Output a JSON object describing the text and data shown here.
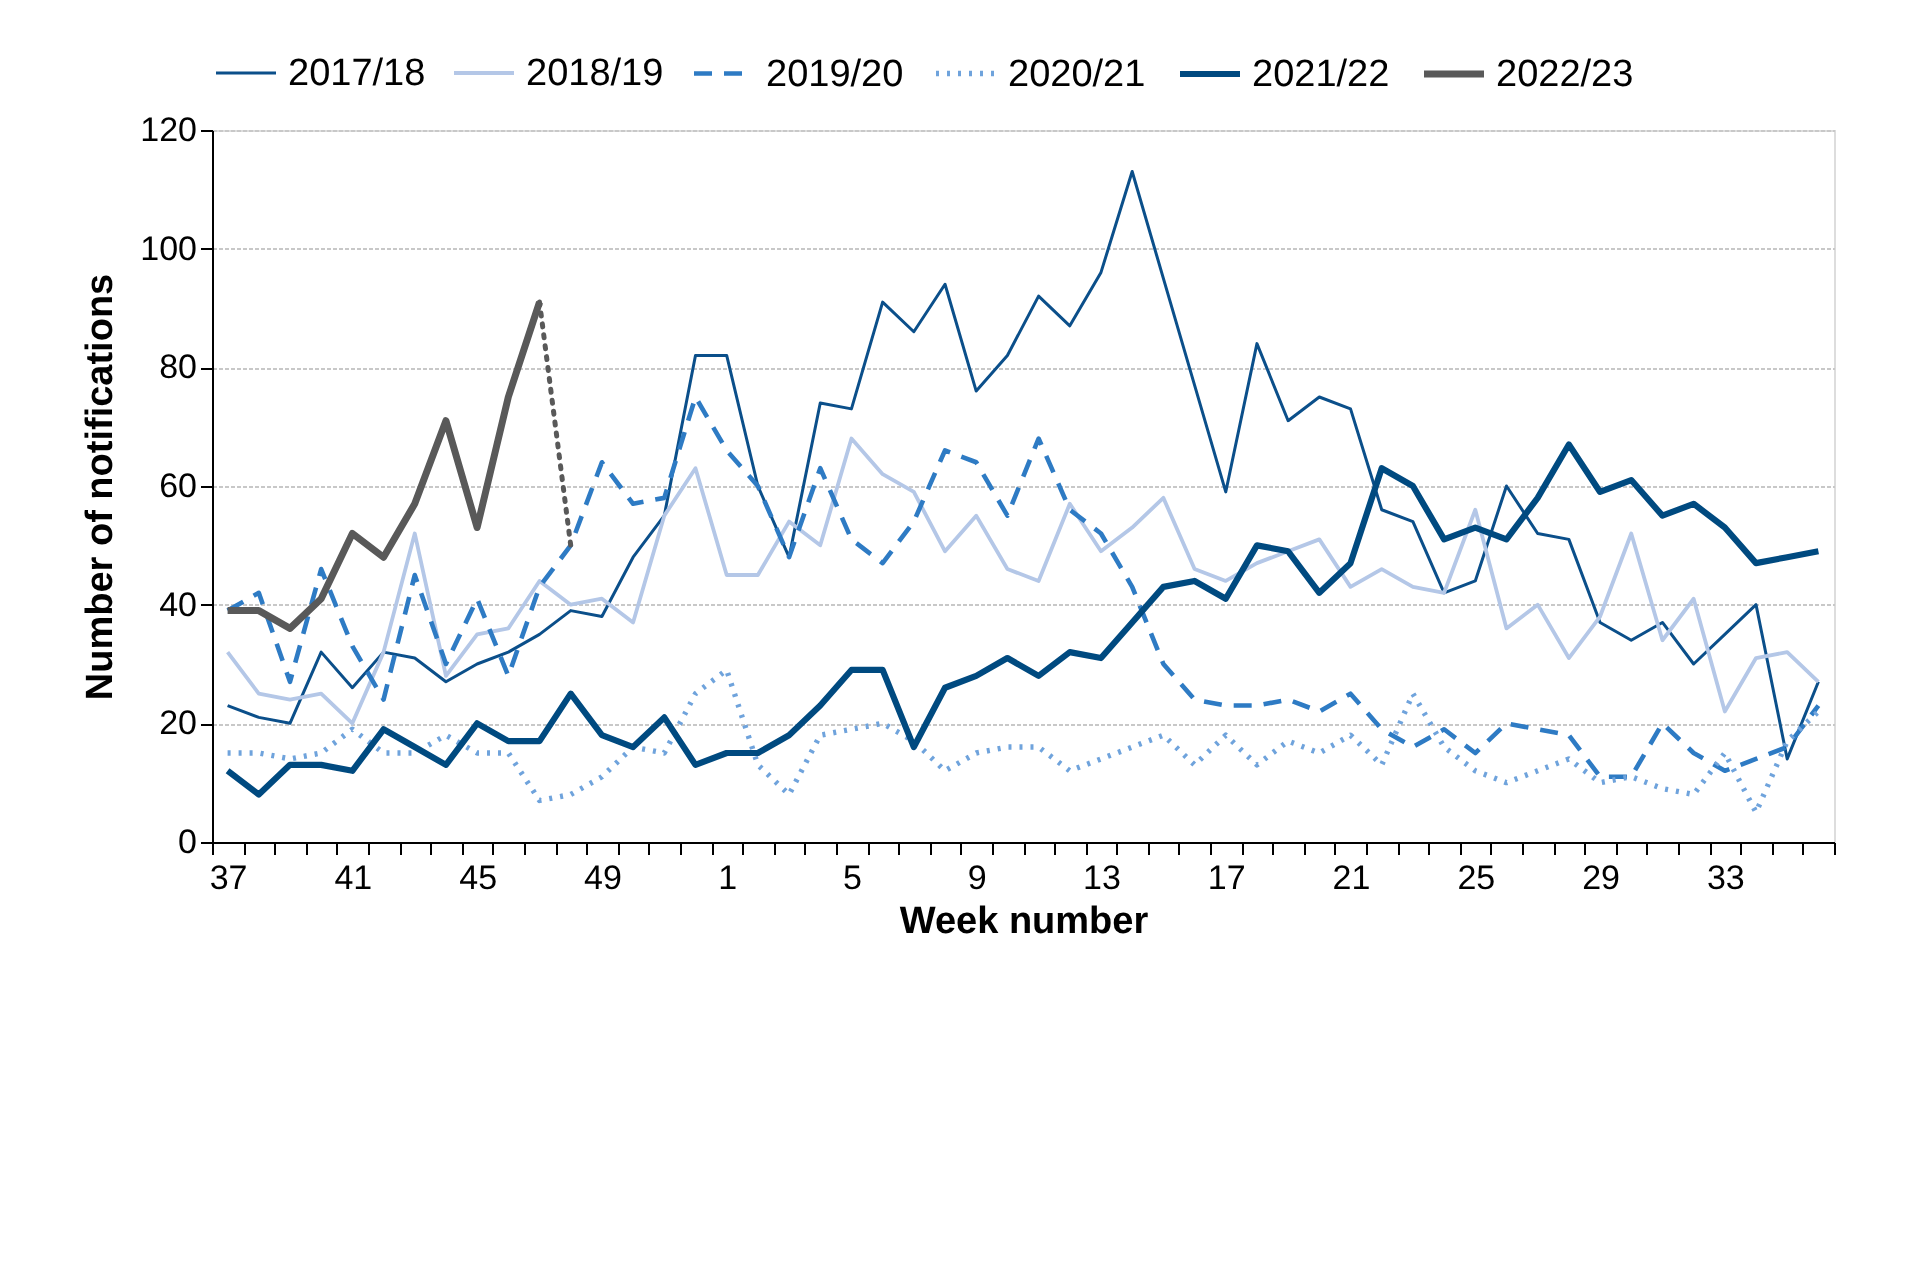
{
  "chart_data": {
    "type": "line",
    "xlabel": "Week number",
    "ylabel": "Number of notifications",
    "categories": [
      "37",
      null,
      null,
      null,
      "41",
      null,
      null,
      null,
      "45",
      null,
      null,
      null,
      "49",
      null,
      null,
      null,
      "1",
      null,
      null,
      null,
      "5",
      null,
      null,
      null,
      "9",
      null,
      null,
      null,
      "13",
      null,
      null,
      null,
      "17",
      null,
      null,
      null,
      "21",
      null,
      null,
      null,
      "25",
      null,
      null,
      null,
      "29",
      null,
      null,
      null,
      "33",
      null,
      null,
      null
    ],
    "ylim": [
      0,
      120
    ],
    "yticks": [
      0,
      20,
      40,
      60,
      80,
      100,
      120
    ],
    "grid": "y",
    "legend": "top",
    "series": [
      {
        "name": "2017/18",
        "color": "#0b4f8a",
        "line_style": "solid",
        "values": [
          23,
          21,
          20,
          32,
          26,
          32,
          31,
          27,
          30,
          32,
          35,
          39,
          38,
          48,
          55,
          82,
          82,
          60,
          48,
          74,
          73,
          91,
          86,
          94,
          76,
          82,
          92,
          87,
          96,
          113,
          95,
          77,
          59,
          84,
          71,
          75,
          73,
          56,
          54,
          42,
          44,
          60,
          52,
          51,
          37,
          34,
          37,
          30,
          35,
          40,
          14,
          27
        ]
      },
      {
        "name": "2018/19",
        "color": "#b4c7e7",
        "line_style": "solid",
        "values": [
          32,
          25,
          24,
          25,
          20,
          32,
          52,
          28,
          35,
          36,
          44,
          40,
          41,
          37,
          55,
          63,
          45,
          45,
          54,
          50,
          68,
          62,
          59,
          49,
          55,
          46,
          44,
          57,
          49,
          53,
          58,
          46,
          44,
          47,
          49,
          51,
          43,
          46,
          43,
          42,
          56,
          36,
          40,
          31,
          38,
          52,
          34,
          41,
          22,
          31,
          32,
          27
        ]
      },
      {
        "name": "2019/20",
        "color": "#2e7bc4",
        "line_style": "dashed",
        "values": [
          39,
          42,
          27,
          46,
          33,
          24,
          45,
          30,
          41,
          28,
          43,
          50,
          64,
          57,
          58,
          75,
          66,
          60,
          48,
          63,
          51,
          47,
          54,
          66,
          64,
          55,
          68,
          56,
          52,
          43,
          30,
          24,
          23,
          23,
          24,
          22,
          25,
          19,
          16,
          19,
          15,
          20,
          19,
          18,
          11,
          11,
          20,
          15,
          12,
          14,
          16,
          23
        ]
      },
      {
        "name": "2020/21",
        "color": "#6fa3dc",
        "line_style": "dotted",
        "values": [
          15,
          15,
          14,
          15,
          19,
          15,
          15,
          18,
          15,
          15,
          7,
          8,
          11,
          16,
          15,
          25,
          29,
          13,
          8,
          18,
          19,
          20,
          17,
          12,
          15,
          16,
          16,
          12,
          14,
          16,
          18,
          13,
          18,
          13,
          17,
          15,
          18,
          13,
          25,
          16,
          12,
          10,
          12,
          14,
          10,
          11,
          9,
          8,
          15,
          5,
          17,
          22
        ]
      },
      {
        "name": "2021/22",
        "color": "#004a80",
        "line_style": "solid",
        "values": [
          12,
          8,
          13,
          13,
          12,
          19,
          16,
          13,
          20,
          17,
          17,
          25,
          18,
          16,
          21,
          13,
          15,
          15,
          18,
          23,
          29,
          29,
          16,
          26,
          28,
          31,
          28,
          32,
          31,
          37,
          43,
          44,
          41,
          50,
          49,
          42,
          47,
          63,
          60,
          51,
          53,
          51,
          58,
          67,
          59,
          61,
          55,
          57,
          53,
          47,
          48,
          49
        ]
      },
      {
        "name": "2022/23",
        "color": "#595959",
        "line_style": "solid",
        "values": [
          39,
          39,
          36,
          41,
          52,
          48,
          57,
          71,
          53,
          75,
          91,
          null,
          null,
          null,
          null,
          null,
          null,
          null,
          null,
          null,
          null,
          null,
          null,
          null,
          null,
          null,
          null,
          null,
          null,
          null,
          null,
          null,
          null,
          null,
          null,
          null,
          null,
          null,
          null,
          null,
          null,
          null,
          null,
          null,
          null,
          null,
          null,
          null,
          null,
          null,
          null,
          null
        ]
      },
      {
        "color": "#595959",
        "line_style": "dotted",
        "values": [
          null,
          null,
          null,
          null,
          null,
          null,
          null,
          null,
          null,
          null,
          91,
          50,
          null,
          null,
          null,
          null,
          null,
          null,
          null,
          null,
          null,
          null,
          null,
          null,
          null,
          null,
          null,
          null,
          null,
          null,
          null,
          null,
          null,
          null,
          null,
          null,
          null,
          null,
          null,
          null,
          null,
          null,
          null,
          null,
          null,
          null,
          null,
          null,
          null,
          null,
          null,
          null
        ]
      }
    ]
  }
}
